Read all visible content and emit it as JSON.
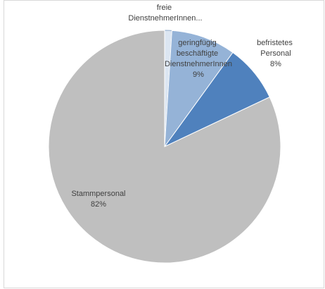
{
  "chart_data": {
    "type": "pie",
    "categories": [
      "freie DienstnehmerInnen...",
      "geringfügig beschäftigte DienstnehmerInnen",
      "befristetes Personal",
      "Stammpersonal"
    ],
    "values": [
      1,
      9,
      8,
      82
    ],
    "value_labels": [
      null,
      "9%",
      "8%",
      "82%"
    ],
    "colors": [
      "#dce6f2",
      "#95b3d7",
      "#4f81bd",
      "#bfbfbf"
    ]
  }
}
